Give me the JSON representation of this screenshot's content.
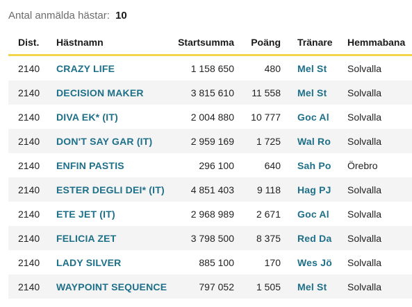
{
  "summary": {
    "label": "Antal anmälda hästar:",
    "count": "10"
  },
  "table": {
    "headers": {
      "distance": "Dist.",
      "horse": "Hästnamn",
      "earnings": "Startsumma",
      "points": "Poäng",
      "trainer": "Tränare",
      "track": "Hemmabana"
    },
    "rows": [
      {
        "distance": "2140",
        "horse": "CRAZY LIFE",
        "earnings": "1 158 650",
        "points": "480",
        "trainer": "Mel St",
        "track": "Solvalla"
      },
      {
        "distance": "2140",
        "horse": "DECISION MAKER",
        "earnings": "3 815 610",
        "points": "11 558",
        "trainer": "Mel St",
        "track": "Solvalla"
      },
      {
        "distance": "2140",
        "horse": "DIVA EK* (IT)",
        "earnings": "2 004 880",
        "points": "10 777",
        "trainer": "Goc Al",
        "track": "Solvalla"
      },
      {
        "distance": "2140",
        "horse": "DON'T SAY GAR (IT)",
        "earnings": "2 959 169",
        "points": "1 725",
        "trainer": "Wal Ro",
        "track": "Solvalla"
      },
      {
        "distance": "2140",
        "horse": "ENFIN PASTIS",
        "earnings": "296 100",
        "points": "640",
        "trainer": "Sah Po",
        "track": "Örebro"
      },
      {
        "distance": "2140",
        "horse": "ESTER DEGLI DEI* (IT)",
        "earnings": "4 851 403",
        "points": "9 118",
        "trainer": "Hag PJ",
        "track": "Solvalla"
      },
      {
        "distance": "2140",
        "horse": "ETE JET (IT)",
        "earnings": "2 968 989",
        "points": "2 671",
        "trainer": "Goc Al",
        "track": "Solvalla"
      },
      {
        "distance": "2140",
        "horse": "FELICIA ZET",
        "earnings": "3 798 500",
        "points": "8 375",
        "trainer": "Red Da",
        "track": "Solvalla"
      },
      {
        "distance": "2140",
        "horse": "LADY SILVER",
        "earnings": "885 100",
        "points": "170",
        "trainer": "Wes Jö",
        "track": "Solvalla"
      },
      {
        "distance": "2140",
        "horse": "WAYPOINT SEQUENCE",
        "earnings": "797 052",
        "points": "1 505",
        "trainer": "Mel St",
        "track": "Solvalla"
      }
    ]
  },
  "colors": {
    "link": "#1d6f8a",
    "header_underline": "#f2d64a",
    "row_stripe": "#f4f4f4"
  }
}
